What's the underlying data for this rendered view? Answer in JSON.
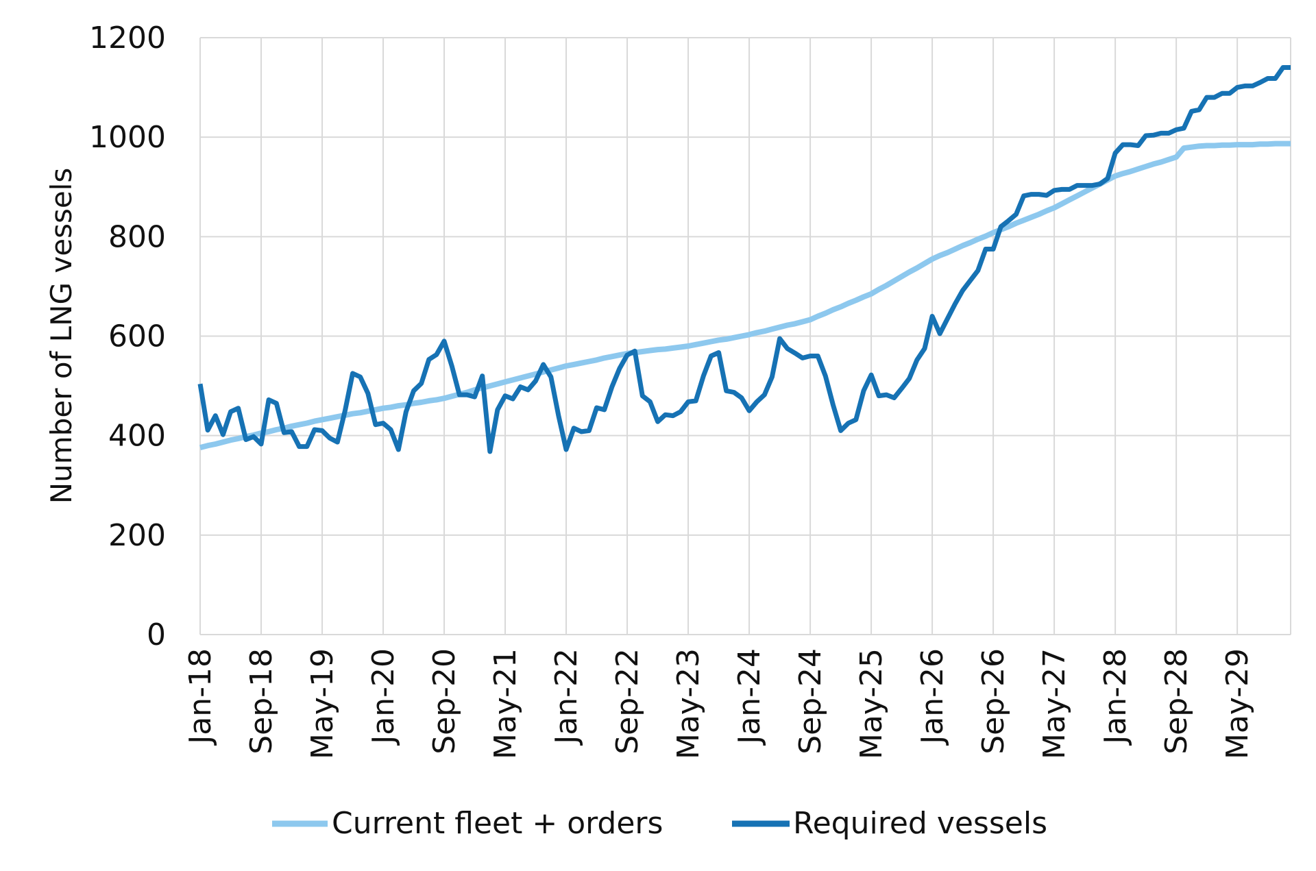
{
  "chart_data": {
    "type": "line",
    "title": "",
    "xlabel": "",
    "ylabel": "Number of LNG vessels",
    "ylim": [
      0,
      1200
    ],
    "yticks": [
      0,
      200,
      400,
      600,
      800,
      1000,
      1200
    ],
    "x_start": "Jan-18",
    "x_end": "Dec-29",
    "x_frequency": "monthly",
    "xtick_labels": [
      "Jan-18",
      "Sep-18",
      "May-19",
      "Jan-20",
      "Sep-20",
      "May-21",
      "Jan-22",
      "Sep-22",
      "May-23",
      "Jan-24",
      "Sep-24",
      "May-25",
      "Jan-26",
      "Sep-26",
      "May-27",
      "Jan-28",
      "Sep-28",
      "May-29"
    ],
    "grid": true,
    "legend": "bottom",
    "series": [
      {
        "name": "Current fleet + orders",
        "color": "#8DC8EE",
        "values": [
          376,
          380,
          383,
          387,
          391,
          394,
          398,
          401,
          405,
          408,
          412,
          415,
          419,
          422,
          425,
          429,
          432,
          435,
          438,
          441,
          444,
          446,
          449,
          452,
          455,
          457,
          460,
          462,
          465,
          467,
          470,
          472,
          475,
          479,
          483,
          487,
          492,
          496,
          500,
          504,
          508,
          512,
          516,
          520,
          524,
          528,
          532,
          536,
          540,
          543,
          546,
          549,
          552,
          556,
          559,
          562,
          565,
          567,
          569,
          571,
          573,
          574,
          576,
          578,
          580,
          583,
          586,
          589,
          592,
          594,
          597,
          600,
          603,
          607,
          610,
          614,
          618,
          622,
          625,
          629,
          633,
          640,
          646,
          653,
          659,
          666,
          672,
          679,
          685,
          694,
          702,
          711,
          720,
          729,
          737,
          746,
          755,
          762,
          768,
          775,
          782,
          788,
          795,
          801,
          808,
          814,
          820,
          827,
          833,
          839,
          845,
          852,
          858,
          866,
          874,
          882,
          890,
          898,
          906,
          914,
          922,
          927,
          931,
          936,
          941,
          946,
          950,
          955,
          960,
          978,
          980,
          982,
          983,
          983,
          984,
          984,
          985,
          985,
          985,
          986,
          986,
          987,
          987,
          987
        ]
      },
      {
        "name": "Required vessels",
        "color": "#1672B4",
        "values": [
          504,
          411,
          440,
          402,
          448,
          455,
          392,
          398,
          383,
          472,
          465,
          406,
          408,
          378,
          378,
          412,
          410,
          395,
          387,
          450,
          525,
          518,
          485,
          422,
          425,
          412,
          372,
          448,
          490,
          505,
          553,
          563,
          590,
          540,
          482,
          482,
          478,
          520,
          368,
          452,
          480,
          474,
          498,
          492,
          510,
          543,
          518,
          440,
          372,
          415,
          408,
          410,
          456,
          452,
          498,
          535,
          562,
          570,
          480,
          468,
          428,
          442,
          440,
          448,
          468,
          470,
          520,
          560,
          567,
          490,
          487,
          476,
          450,
          468,
          482,
          518,
          595,
          575,
          566,
          556,
          560,
          560,
          520,
          462,
          410,
          425,
          432,
          490,
          522,
          480,
          482,
          476,
          495,
          515,
          552,
          575,
          640,
          605,
          635,
          665,
          692,
          712,
          732,
          775,
          775,
          820,
          832,
          845,
          882,
          885,
          885,
          883,
          893,
          895,
          895,
          903,
          903,
          903,
          906,
          917,
          968,
          985,
          985,
          983,
          1003,
          1004,
          1008,
          1008,
          1015,
          1018,
          1052,
          1055,
          1080,
          1080,
          1088,
          1088,
          1100,
          1103,
          1103,
          1110,
          1118,
          1118,
          1140,
          1140
        ]
      }
    ]
  }
}
